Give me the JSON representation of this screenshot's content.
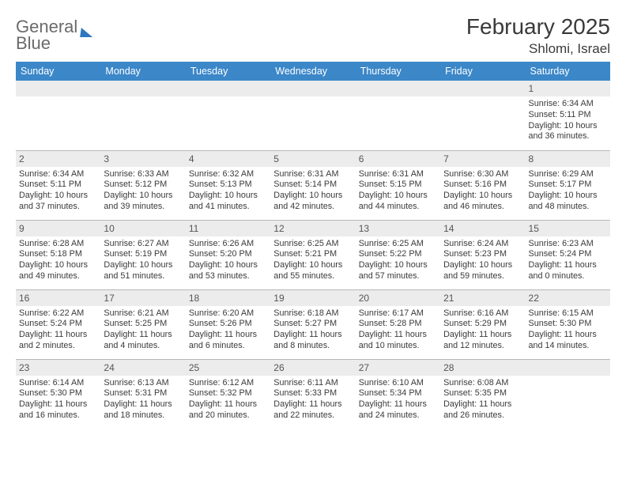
{
  "brand": {
    "word1": "General",
    "word2": "Blue"
  },
  "title": "February 2025",
  "location": "Shlomi, Israel",
  "colors": {
    "header_bg": "#3b87c8",
    "header_text": "#ffffff",
    "daynum_bg": "#ececec",
    "border": "#b8b8b8",
    "body_text": "#3a3a3a",
    "logo_gray": "#6a6a6a",
    "logo_blue": "#2f78bf"
  },
  "weekdays": [
    "Sunday",
    "Monday",
    "Tuesday",
    "Wednesday",
    "Thursday",
    "Friday",
    "Saturday"
  ],
  "weeks": [
    [
      null,
      null,
      null,
      null,
      null,
      null,
      {
        "n": "1",
        "sr": "6:34 AM",
        "ss": "5:11 PM",
        "dl": "10 hours and 36 minutes."
      }
    ],
    [
      {
        "n": "2",
        "sr": "6:34 AM",
        "ss": "5:11 PM",
        "dl": "10 hours and 37 minutes."
      },
      {
        "n": "3",
        "sr": "6:33 AM",
        "ss": "5:12 PM",
        "dl": "10 hours and 39 minutes."
      },
      {
        "n": "4",
        "sr": "6:32 AM",
        "ss": "5:13 PM",
        "dl": "10 hours and 41 minutes."
      },
      {
        "n": "5",
        "sr": "6:31 AM",
        "ss": "5:14 PM",
        "dl": "10 hours and 42 minutes."
      },
      {
        "n": "6",
        "sr": "6:31 AM",
        "ss": "5:15 PM",
        "dl": "10 hours and 44 minutes."
      },
      {
        "n": "7",
        "sr": "6:30 AM",
        "ss": "5:16 PM",
        "dl": "10 hours and 46 minutes."
      },
      {
        "n": "8",
        "sr": "6:29 AM",
        "ss": "5:17 PM",
        "dl": "10 hours and 48 minutes."
      }
    ],
    [
      {
        "n": "9",
        "sr": "6:28 AM",
        "ss": "5:18 PM",
        "dl": "10 hours and 49 minutes."
      },
      {
        "n": "10",
        "sr": "6:27 AM",
        "ss": "5:19 PM",
        "dl": "10 hours and 51 minutes."
      },
      {
        "n": "11",
        "sr": "6:26 AM",
        "ss": "5:20 PM",
        "dl": "10 hours and 53 minutes."
      },
      {
        "n": "12",
        "sr": "6:25 AM",
        "ss": "5:21 PM",
        "dl": "10 hours and 55 minutes."
      },
      {
        "n": "13",
        "sr": "6:25 AM",
        "ss": "5:22 PM",
        "dl": "10 hours and 57 minutes."
      },
      {
        "n": "14",
        "sr": "6:24 AM",
        "ss": "5:23 PM",
        "dl": "10 hours and 59 minutes."
      },
      {
        "n": "15",
        "sr": "6:23 AM",
        "ss": "5:24 PM",
        "dl": "11 hours and 0 minutes."
      }
    ],
    [
      {
        "n": "16",
        "sr": "6:22 AM",
        "ss": "5:24 PM",
        "dl": "11 hours and 2 minutes."
      },
      {
        "n": "17",
        "sr": "6:21 AM",
        "ss": "5:25 PM",
        "dl": "11 hours and 4 minutes."
      },
      {
        "n": "18",
        "sr": "6:20 AM",
        "ss": "5:26 PM",
        "dl": "11 hours and 6 minutes."
      },
      {
        "n": "19",
        "sr": "6:18 AM",
        "ss": "5:27 PM",
        "dl": "11 hours and 8 minutes."
      },
      {
        "n": "20",
        "sr": "6:17 AM",
        "ss": "5:28 PM",
        "dl": "11 hours and 10 minutes."
      },
      {
        "n": "21",
        "sr": "6:16 AM",
        "ss": "5:29 PM",
        "dl": "11 hours and 12 minutes."
      },
      {
        "n": "22",
        "sr": "6:15 AM",
        "ss": "5:30 PM",
        "dl": "11 hours and 14 minutes."
      }
    ],
    [
      {
        "n": "23",
        "sr": "6:14 AM",
        "ss": "5:30 PM",
        "dl": "11 hours and 16 minutes."
      },
      {
        "n": "24",
        "sr": "6:13 AM",
        "ss": "5:31 PM",
        "dl": "11 hours and 18 minutes."
      },
      {
        "n": "25",
        "sr": "6:12 AM",
        "ss": "5:32 PM",
        "dl": "11 hours and 20 minutes."
      },
      {
        "n": "26",
        "sr": "6:11 AM",
        "ss": "5:33 PM",
        "dl": "11 hours and 22 minutes."
      },
      {
        "n": "27",
        "sr": "6:10 AM",
        "ss": "5:34 PM",
        "dl": "11 hours and 24 minutes."
      },
      {
        "n": "28",
        "sr": "6:08 AM",
        "ss": "5:35 PM",
        "dl": "11 hours and 26 minutes."
      },
      null
    ]
  ],
  "labels": {
    "sunrise": "Sunrise:",
    "sunset": "Sunset:",
    "daylight": "Daylight:"
  }
}
